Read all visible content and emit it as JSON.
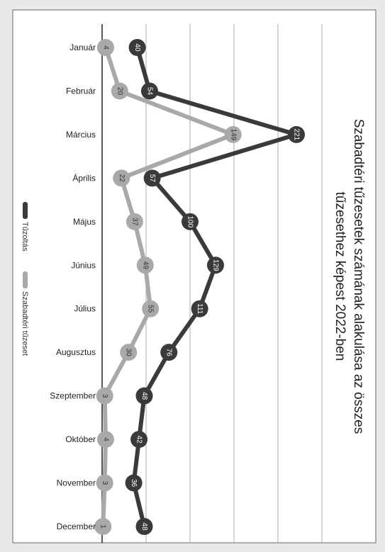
{
  "chart_data": {
    "type": "line",
    "title_line1": "Szabadtéri tűzesetek számának alakulása az összes",
    "title_line2": "tűzesethez képest 2022-ben",
    "categories": [
      "Január",
      "Február",
      "Március",
      "Április",
      "Május",
      "Június",
      "Július",
      "Augusztus",
      "Szeptember",
      "Október",
      "November",
      "December"
    ],
    "series": [
      {
        "name": "Tűzoltás",
        "color": "#3a3a3a",
        "text_color": "#ffffff",
        "values": [
          40,
          54,
          221,
          57,
          100,
          129,
          111,
          76,
          48,
          42,
          36,
          48
        ]
      },
      {
        "name": "Szabadtéri tűzeset",
        "color": "#a9a9a9",
        "text_color": "#333333",
        "values": [
          4,
          20,
          149,
          22,
          37,
          49,
          55,
          30,
          3,
          4,
          3,
          1
        ]
      }
    ],
    "value_axis_range": [
      0,
      250
    ],
    "gridlines": true,
    "orientation": "rotated-90-clockwise",
    "legend_position": "left"
  }
}
